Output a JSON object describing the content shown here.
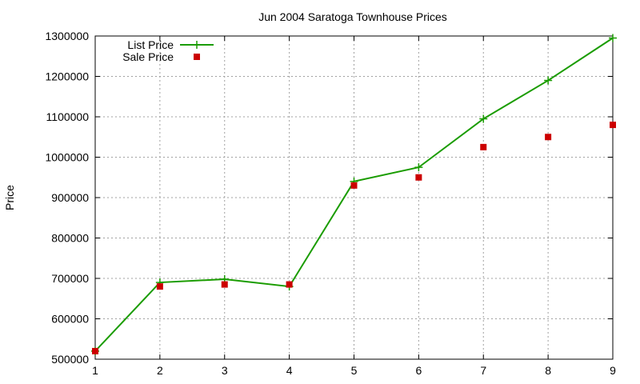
{
  "chart_data": {
    "type": "line",
    "title": "Jun 2004 Saratoga Townhouse Prices",
    "xlabel": "",
    "ylabel": "Price",
    "xlim": [
      1,
      9
    ],
    "ylim": [
      500000,
      1300000
    ],
    "xticks": [
      1,
      2,
      3,
      4,
      5,
      6,
      7,
      8,
      9
    ],
    "yticks": [
      500000,
      600000,
      700000,
      800000,
      900000,
      1000000,
      1100000,
      1200000,
      1300000
    ],
    "grid": true,
    "legend_position": "top-left",
    "series": [
      {
        "name": "List Price",
        "style": "line+cross",
        "color": "#1a9c00",
        "x": [
          1,
          2,
          3,
          4,
          5,
          6,
          7,
          8,
          9
        ],
        "y": [
          520000,
          690000,
          698000,
          680000,
          940000,
          975000,
          1095000,
          1190000,
          1295000
        ]
      },
      {
        "name": "Sale Price",
        "style": "square",
        "color": "#cc0000",
        "x": [
          1,
          2,
          3,
          4,
          5,
          6,
          7,
          8,
          9
        ],
        "y": [
          520000,
          680000,
          685000,
          685000,
          930000,
          950000,
          1025000,
          1050000,
          1080000
        ]
      }
    ]
  }
}
